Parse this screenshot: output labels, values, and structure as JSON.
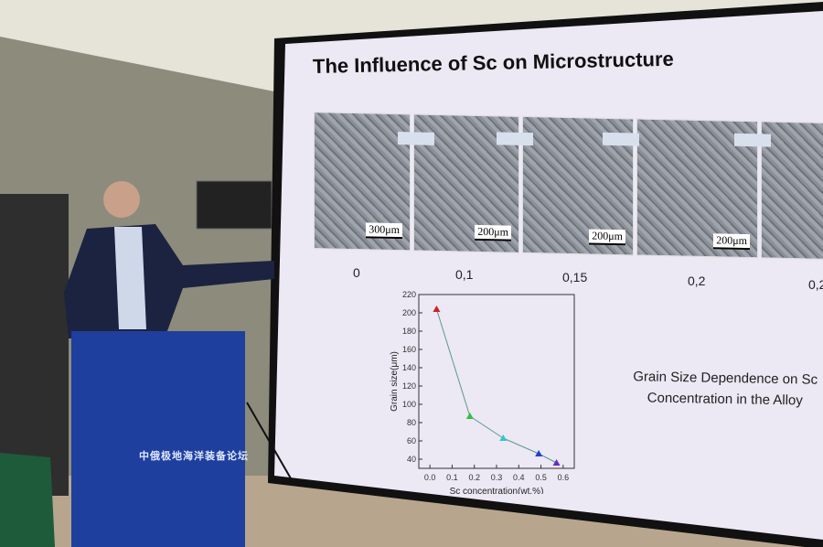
{
  "slide": {
    "title": "The Influence of Sc on Microstructure",
    "micrographs": [
      {
        "scale": "300μm",
        "concentration": "0"
      },
      {
        "scale": "200μm",
        "concentration": "0,1"
      },
      {
        "scale": "200μm",
        "concentration": "0,15"
      },
      {
        "scale": "200μm",
        "concentration": "0,2"
      },
      {
        "scale": "",
        "concentration": "0,2"
      }
    ],
    "caption": "Grain Size Dependence on Sc Concentration in the Alloy"
  },
  "podium": {
    "title": "中俄极地海洋装备论坛"
  },
  "colors": {
    "screen": "#ece8f4",
    "podium": "#1f3f9e",
    "wall": "#8d8b7c"
  },
  "chart_data": {
    "type": "line",
    "xlabel": "Sc concentration(wt.%)",
    "ylabel": "Grain size(μm)",
    "xlim": [
      -0.05,
      0.65
    ],
    "ylim": [
      30,
      220
    ],
    "xticks": [
      "0.0",
      "0.1",
      "0.2",
      "0.3",
      "0.4",
      "0.5",
      "0.6"
    ],
    "yticks": [
      "40",
      "60",
      "80",
      "100",
      "120",
      "140",
      "160",
      "180",
      "200",
      "220"
    ],
    "x": [
      0.03,
      0.18,
      0.33,
      0.49,
      0.57
    ],
    "y": [
      204,
      87,
      63,
      46,
      36
    ],
    "point_colors": [
      "#d02020",
      "#30c040",
      "#30c8c8",
      "#2040d0",
      "#6030c0"
    ]
  }
}
